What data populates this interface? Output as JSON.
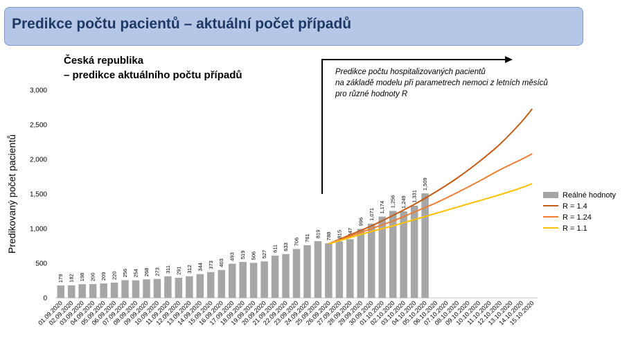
{
  "banner": {
    "title": "Predikce počtu pacientů – aktuální počet případů"
  },
  "chart_data": {
    "type": "bar",
    "title_line1": "Česká republika",
    "title_line2": "– predikce aktuálního počtu případů",
    "annotation": [
      "Predikce počtu hospitalizovaných pacientů",
      "na základě modelu při parametrech nemoci z letních měsíců",
      "pro různé hodnoty R"
    ],
    "ylabel": "Predikovaný počet pacientů",
    "ylim": [
      0,
      3000
    ],
    "yticks": [
      0,
      500,
      1000,
      1500,
      2000,
      2500,
      3000
    ],
    "ytick_labels": [
      "0",
      "500",
      "1,000",
      "1,500",
      "2,000",
      "2,500",
      "3,000"
    ],
    "categories": [
      "01.09.2020",
      "02.09.2020",
      "03.09.2020",
      "04.09.2020",
      "05.09.2020",
      "06.09.2020",
      "07.09.2020",
      "08.09.2020",
      "09.09.2020",
      "10.09.2020",
      "11.09.2020",
      "12.09.2020",
      "13.09.2020",
      "14.09.2020",
      "15.09.2020",
      "16.09.2020",
      "17.09.2020",
      "18.09.2020",
      "19.09.2020",
      "20.09.2020",
      "21.09.2020",
      "22.09.2020",
      "23.09.2020",
      "24.09.2020",
      "25.09.2020",
      "26.09.2020",
      "27.09.2020",
      "28.09.2020",
      "29.09.2020",
      "30.09.2020",
      "01.10.2020",
      "02.10.2020",
      "03.10.2020",
      "04.10.2020",
      "05.10.2020",
      "06.10.2020",
      "07.10.2020",
      "08.10.2020",
      "09.10.2020",
      "10.10.2020",
      "11.10.2020",
      "12.10.2020",
      "13.10.2020",
      "14.10.2020",
      "15.10.2020"
    ],
    "bars": {
      "name": "Reálné hodnoty",
      "color": "#a6a6a6",
      "values": [
        179,
        182,
        198,
        200,
        209,
        220,
        256,
        254,
        268,
        273,
        311,
        291,
        312,
        344,
        373,
        403,
        493,
        519,
        506,
        527,
        611,
        633,
        706,
        761,
        819,
        788,
        815,
        847,
        996,
        1071,
        1174,
        1256,
        1249,
        1331,
        1509
      ],
      "labels": [
        "179",
        "182",
        "198",
        "200",
        "209",
        "220",
        "256",
        "254",
        "268",
        "273",
        "311",
        "291",
        "312",
        "344",
        "373",
        "403",
        "493",
        "519",
        "506",
        "527",
        "611",
        "633",
        "706",
        "761",
        "819",
        "788",
        "815",
        "847",
        "996",
        "1,071",
        "1,174",
        "1,256",
        "1,249",
        "1,331",
        "1,509"
      ]
    },
    "series": [
      {
        "name": "R = 1.4",
        "color": "#c55a11",
        "x": [
          "26.09.2020",
          "28.09.2020",
          "30.09.2020",
          "02.10.2020",
          "04.10.2020",
          "06.10.2020",
          "08.10.2020",
          "10.10.2020",
          "12.10.2020",
          "14.10.2020",
          "15.10.2020"
        ],
        "values": [
          780,
          910,
          1040,
          1190,
          1350,
          1530,
          1730,
          1960,
          2220,
          2540,
          2730
        ]
      },
      {
        "name": "R = 1.24",
        "color": "#ed7d31",
        "x": [
          "26.09.2020",
          "28.09.2020",
          "30.09.2020",
          "02.10.2020",
          "04.10.2020",
          "06.10.2020",
          "08.10.2020",
          "10.10.2020",
          "12.10.2020",
          "14.10.2020",
          "15.10.2020"
        ],
        "values": [
          780,
          890,
          1000,
          1110,
          1240,
          1370,
          1520,
          1680,
          1850,
          2000,
          2080
        ]
      },
      {
        "name": "R = 1.1",
        "color": "#ffc000",
        "x": [
          "26.09.2020",
          "28.09.2020",
          "30.09.2020",
          "02.10.2020",
          "04.10.2020",
          "06.10.2020",
          "08.10.2020",
          "10.10.2020",
          "12.10.2020",
          "14.10.2020",
          "15.10.2020"
        ],
        "values": [
          780,
          870,
          960,
          1040,
          1130,
          1220,
          1310,
          1400,
          1490,
          1590,
          1650
        ]
      }
    ],
    "legend_position": "right",
    "grid": false
  }
}
